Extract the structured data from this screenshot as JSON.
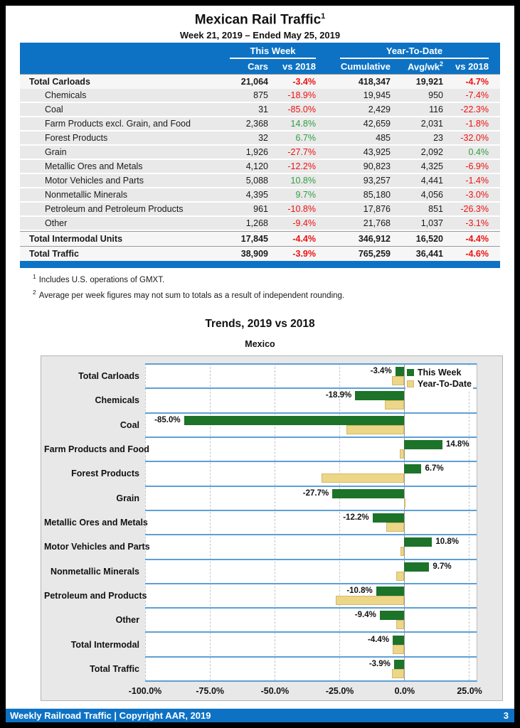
{
  "page": {
    "title": "Mexican Rail Traffic",
    "title_sup": "1",
    "subtitle": "Week 21, 2019 – Ended May 25, 2019",
    "footer": {
      "left": "Weekly Railroad Traffic | Copyright AAR, 2019",
      "page_number": "3"
    }
  },
  "colors": {
    "header_blue": "#0d72c4",
    "negative_red": "#ee1111",
    "positive_green": "#2f9e41",
    "bar_green": "#1c7329",
    "bar_tan": "#edd687",
    "band_line_blue": "#5e9fd6",
    "row_gray": "#e9e9e9"
  },
  "table": {
    "group_headers": {
      "this_week": "This Week",
      "year_to_date": "Year-To-Date"
    },
    "columns": {
      "cars": "Cars",
      "vs_tw": "vs 2018",
      "cumulative": "Cumulative",
      "avg_wk": "Avg/wk",
      "avg_wk_sup": "2",
      "vs_ytd": "vs 2018"
    },
    "rows": [
      {
        "label": "Total Carloads",
        "cars": "21,064",
        "vs_tw": "-3.4%",
        "cumulative": "418,347",
        "avg_wk": "19,921",
        "vs_ytd": "-4.7%",
        "style": "total"
      },
      {
        "label": "Chemicals",
        "cars": "875",
        "vs_tw": "-18.9%",
        "cumulative": "19,945",
        "avg_wk": "950",
        "vs_ytd": "-7.4%",
        "style": "detail"
      },
      {
        "label": "Coal",
        "cars": "31",
        "vs_tw": "-85.0%",
        "cumulative": "2,429",
        "avg_wk": "116",
        "vs_ytd": "-22.3%",
        "style": "detail"
      },
      {
        "label": "Farm Products excl. Grain, and Food",
        "cars": "2,368",
        "vs_tw": "14.8%",
        "cumulative": "42,659",
        "avg_wk": "2,031",
        "vs_ytd": "-1.8%",
        "style": "detail"
      },
      {
        "label": "Forest Products",
        "cars": "32",
        "vs_tw": "6.7%",
        "cumulative": "485",
        "avg_wk": "23",
        "vs_ytd": "-32.0%",
        "style": "detail"
      },
      {
        "label": "Grain",
        "cars": "1,926",
        "vs_tw": "-27.7%",
        "cumulative": "43,925",
        "avg_wk": "2,092",
        "vs_ytd": "0.4%",
        "style": "detail"
      },
      {
        "label": "Metallic Ores and Metals",
        "cars": "4,120",
        "vs_tw": "-12.2%",
        "cumulative": "90,823",
        "avg_wk": "4,325",
        "vs_ytd": "-6.9%",
        "style": "detail"
      },
      {
        "label": "Motor Vehicles and Parts",
        "cars": "5,088",
        "vs_tw": "10.8%",
        "cumulative": "93,257",
        "avg_wk": "4,441",
        "vs_ytd": "-1.4%",
        "style": "detail"
      },
      {
        "label": "Nonmetallic Minerals",
        "cars": "4,395",
        "vs_tw": "9.7%",
        "cumulative": "85,180",
        "avg_wk": "4,056",
        "vs_ytd": "-3.0%",
        "style": "detail"
      },
      {
        "label": "Petroleum and Petroleum Products",
        "cars": "961",
        "vs_tw": "-10.8%",
        "cumulative": "17,876",
        "avg_wk": "851",
        "vs_ytd": "-26.3%",
        "style": "detail"
      },
      {
        "label": "Other",
        "cars": "1,268",
        "vs_tw": "-9.4%",
        "cumulative": "21,768",
        "avg_wk": "1,037",
        "vs_ytd": "-3.1%",
        "style": "detail"
      },
      {
        "label": "Total Intermodal Units",
        "cars": "17,845",
        "vs_tw": "-4.4%",
        "cumulative": "346,912",
        "avg_wk": "16,520",
        "vs_ytd": "-4.4%",
        "style": "total"
      },
      {
        "label": "Total Traffic",
        "cars": "38,909",
        "vs_tw": "-3.9%",
        "cumulative": "765,259",
        "avg_wk": "36,441",
        "vs_ytd": "-4.6%",
        "style": "total"
      }
    ]
  },
  "footnotes": [
    {
      "sup": "1",
      "text": "Includes U.S. operations of GMXT."
    },
    {
      "sup": "2",
      "text": "Average per week figures may not sum to totals as a result of independent rounding."
    }
  ],
  "chart_data": {
    "type": "bar",
    "orientation": "horizontal",
    "title": "Trends, 2019 vs 2018",
    "subtitle": "Mexico",
    "categories": [
      "Total Carloads",
      "Chemicals",
      "Coal",
      "Farm Products and Food",
      "Forest Products",
      "Grain",
      "Metallic Ores and Metals",
      "Motor Vehicles and Parts",
      "Nonmetallic Minerals",
      "Petroleum and Products",
      "Other",
      "Total Intermodal",
      "Total Traffic"
    ],
    "series": [
      {
        "name": "This Week",
        "color": "#1c7329",
        "values": [
          -3.4,
          -18.9,
          -85.0,
          14.8,
          6.7,
          -27.7,
          -12.2,
          10.8,
          9.7,
          -10.8,
          -9.4,
          -4.4,
          -3.9
        ]
      },
      {
        "name": "Year-To-Date",
        "color": "#edd687",
        "values": [
          -4.7,
          -7.4,
          -22.3,
          -1.8,
          -32.0,
          0.4,
          -6.9,
          -1.4,
          -3.0,
          -26.3,
          -3.1,
          -4.4,
          -4.6
        ]
      }
    ],
    "xlim": [
      -100,
      28
    ],
    "ticks": [
      -100,
      -75,
      -50,
      -25,
      0,
      25
    ],
    "tick_labels": [
      "-100.0%",
      "-75.0%",
      "-50.0%",
      "-25.0%",
      "0.0%",
      "25.0%"
    ],
    "legend_position": "top-right",
    "grid": "vertical-dashed",
    "value_labels": "this-week-series-only",
    "xlabel": "",
    "ylabel": ""
  }
}
